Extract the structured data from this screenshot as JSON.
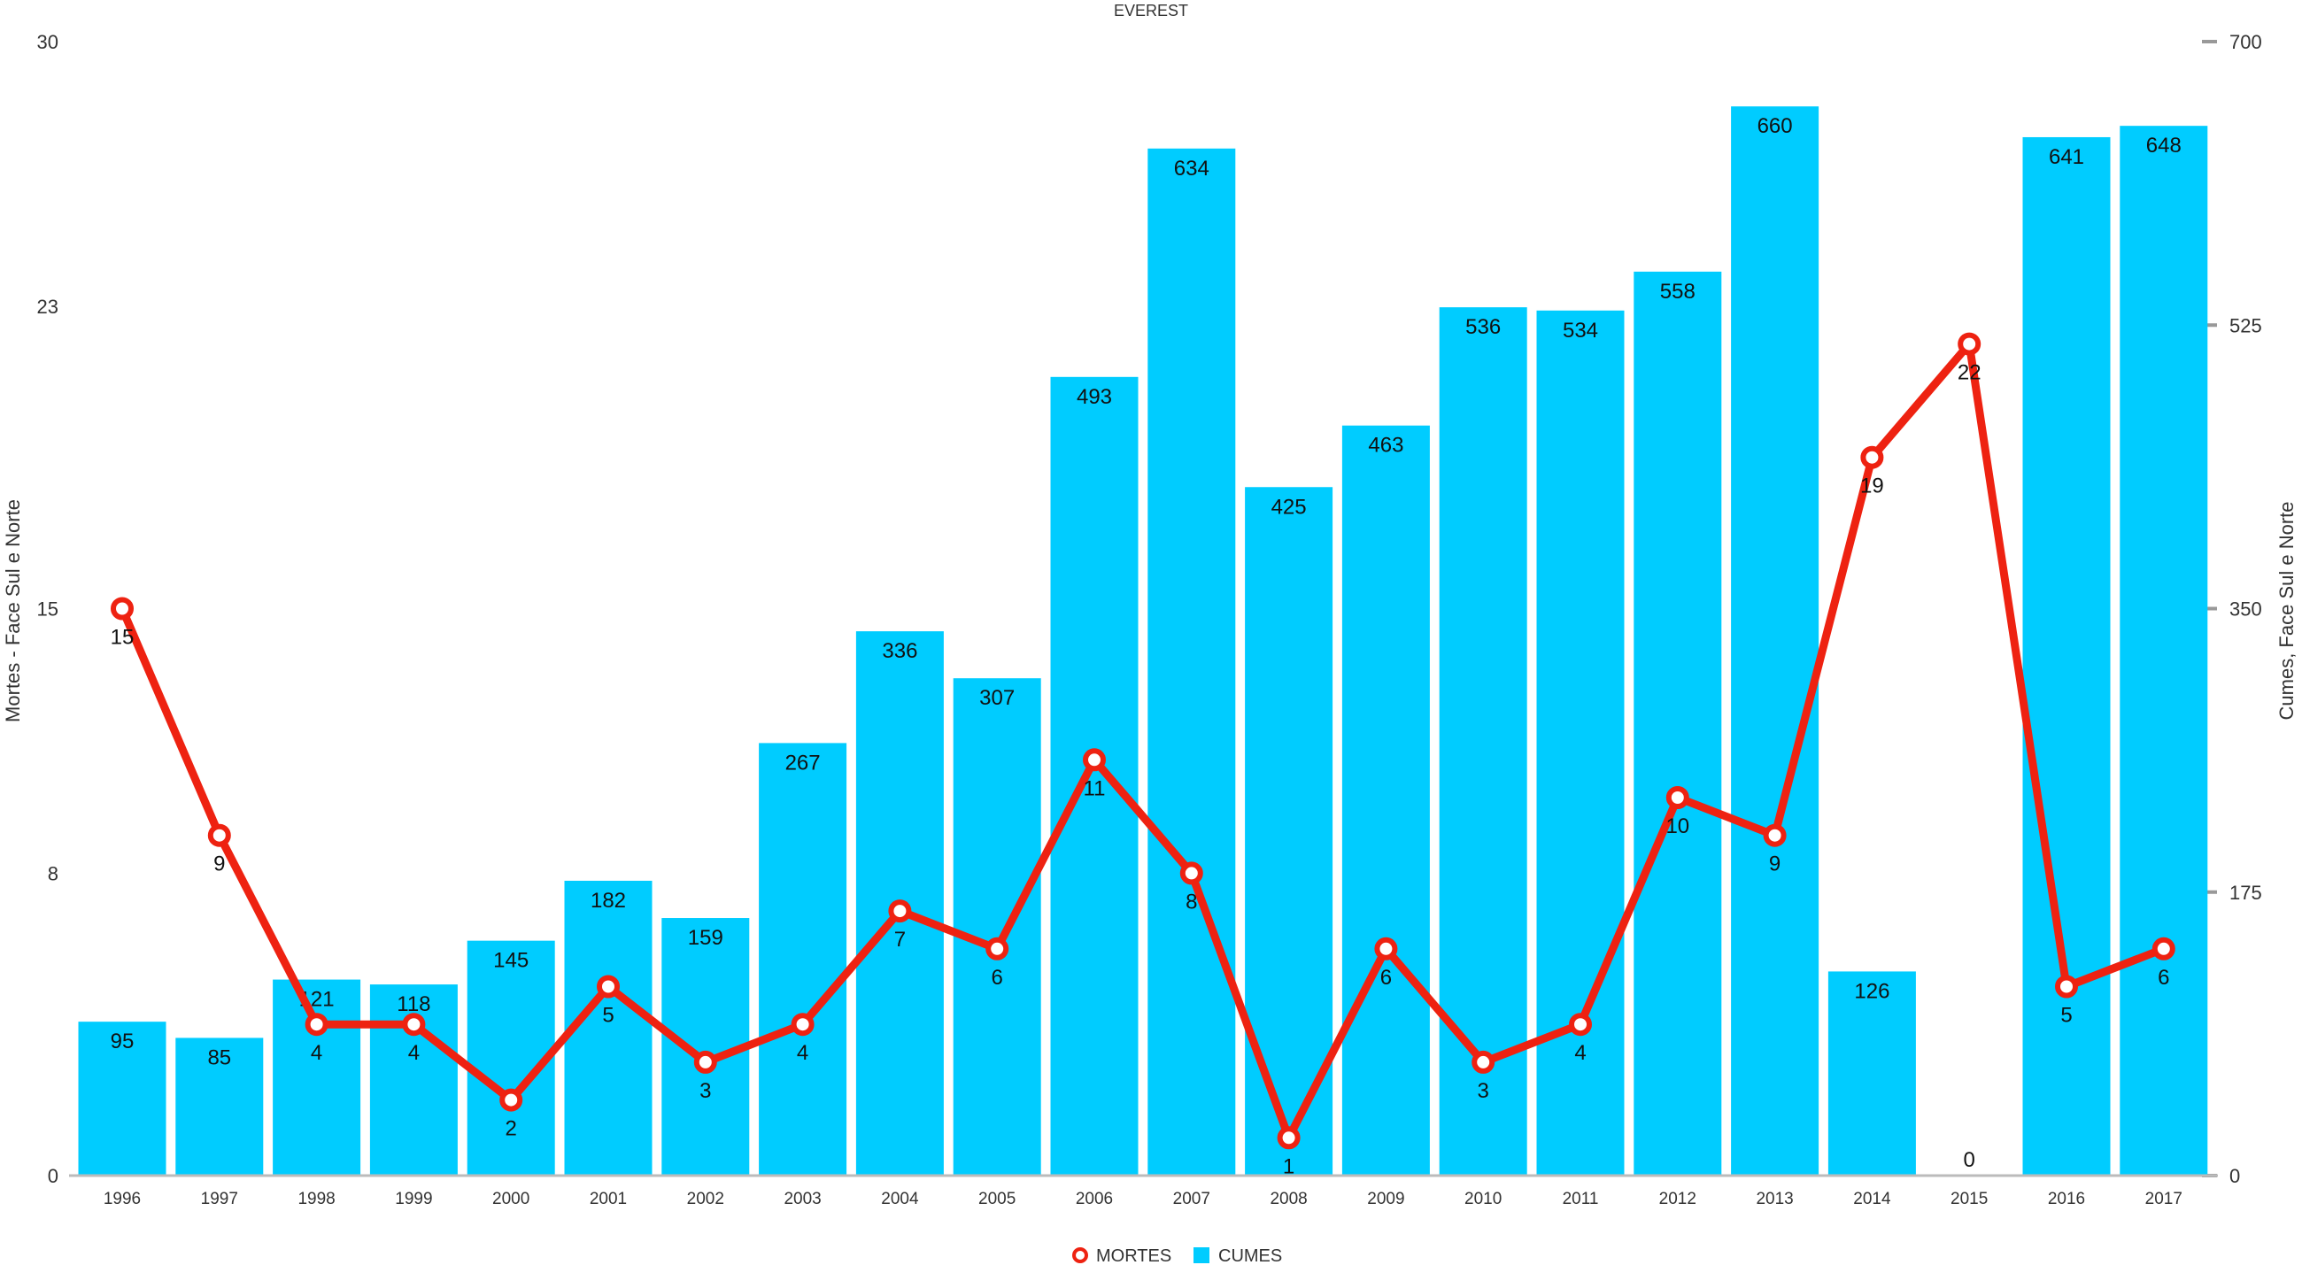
{
  "chart_data": {
    "type": "bar",
    "title": "EVEREST",
    "categories": [
      "1996",
      "1997",
      "1998",
      "1999",
      "2000",
      "2001",
      "2002",
      "2003",
      "2004",
      "2005",
      "2006",
      "2007",
      "2008",
      "2009",
      "2010",
      "2011",
      "2012",
      "2013",
      "2014",
      "2015",
      "2016",
      "2017"
    ],
    "series": [
      {
        "name": "CUMES",
        "type": "bar",
        "axis": "right",
        "color": "#00CCFF",
        "values": [
          95,
          85,
          121,
          118,
          145,
          182,
          159,
          267,
          336,
          307,
          493,
          634,
          425,
          463,
          536,
          534,
          558,
          660,
          126,
          0,
          641,
          648
        ]
      },
      {
        "name": "MORTES",
        "type": "line",
        "axis": "left",
        "color": "#EE2211",
        "values": [
          15,
          9,
          4,
          4,
          2,
          5,
          3,
          4,
          7,
          6,
          11,
          8,
          1,
          6,
          3,
          4,
          10,
          9,
          19,
          22,
          5,
          6
        ]
      }
    ],
    "y_left": {
      "label": "Mortes - Face Sul e Norte",
      "range": [
        0,
        30
      ],
      "ticks": [
        0,
        8,
        15,
        23,
        30
      ]
    },
    "y_right": {
      "label": "Cumes, Face Sul e Norte",
      "range": [
        0,
        700
      ],
      "ticks": [
        0,
        175,
        350,
        525,
        700
      ]
    },
    "grid": false,
    "legend": "bottom-center"
  }
}
